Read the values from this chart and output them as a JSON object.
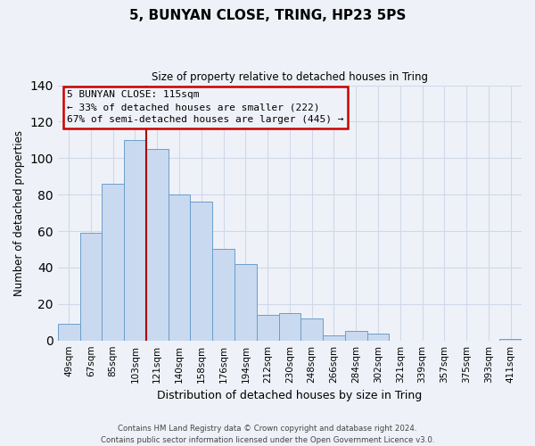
{
  "title": "5, BUNYAN CLOSE, TRING, HP23 5PS",
  "subtitle": "Size of property relative to detached houses in Tring",
  "xlabel": "Distribution of detached houses by size in Tring",
  "ylabel": "Number of detached properties",
  "bar_labels": [
    "49sqm",
    "67sqm",
    "85sqm",
    "103sqm",
    "121sqm",
    "140sqm",
    "158sqm",
    "176sqm",
    "194sqm",
    "212sqm",
    "230sqm",
    "248sqm",
    "266sqm",
    "284sqm",
    "302sqm",
    "321sqm",
    "339sqm",
    "357sqm",
    "375sqm",
    "393sqm",
    "411sqm"
  ],
  "bar_values": [
    9,
    59,
    86,
    110,
    105,
    80,
    76,
    50,
    42,
    14,
    15,
    12,
    3,
    5,
    4,
    0,
    0,
    0,
    0,
    0,
    1
  ],
  "bar_color": "#c9d9f0",
  "bar_edge_color": "#6b9ec8",
  "grid_color": "#d0d8e8",
  "background_color": "#eef2f8",
  "vline_x": 3.5,
  "vline_color": "#aa0000",
  "annotation_line1": "5 BUNYAN CLOSE: 115sqm",
  "annotation_line2": "← 33% of detached houses are smaller (222)",
  "annotation_line3": "67% of semi-detached houses are larger (445) →",
  "annotation_box_edge": "#cc0000",
  "ylim": [
    0,
    140
  ],
  "yticks": [
    0,
    20,
    40,
    60,
    80,
    100,
    120,
    140
  ],
  "footer_line1": "Contains HM Land Registry data © Crown copyright and database right 2024.",
  "footer_line2": "Contains public sector information licensed under the Open Government Licence v3.0."
}
